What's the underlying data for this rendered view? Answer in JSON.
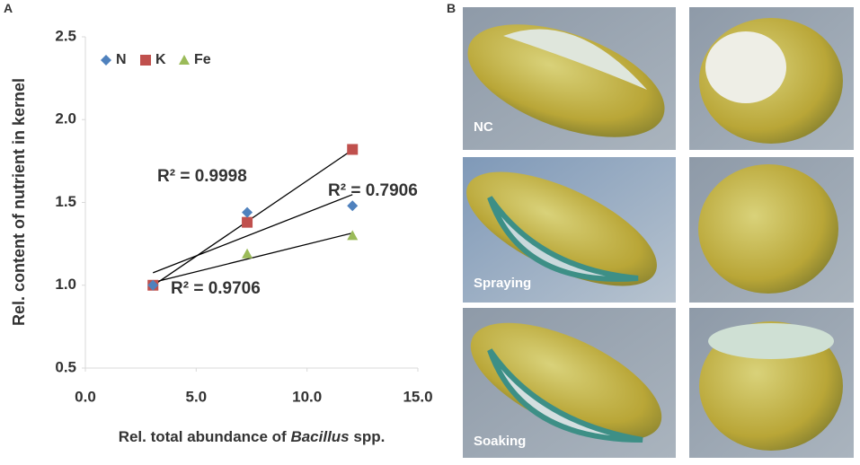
{
  "chart_data": {
    "type": "scatter",
    "y_label": "Rel. content of nutrient in kernel",
    "x_label": [
      "Rel. total abundance of ",
      "Bacillus",
      " spp."
    ],
    "x": [
      3.05,
      7.3,
      12.05
    ],
    "series": [
      {
        "name": "N",
        "color": "#4f81bd",
        "marker": "diamond",
        "values": [
          1.0,
          1.44,
          1.48
        ]
      },
      {
        "name": "K",
        "color": "#c0504d",
        "marker": "square",
        "values": [
          1.0,
          1.38,
          1.82
        ]
      },
      {
        "name": "Fe",
        "color": "#9bbb59",
        "marker": "triangle",
        "values": [
          1.0,
          1.19,
          1.3
        ]
      }
    ],
    "annotations": [
      "R² = 0.9998",
      "R² = 0.7906",
      "R² = 0.9706"
    ],
    "xlim": [
      0,
      15
    ],
    "xticks": [
      {
        "value": 0,
        "label": "0.0"
      },
      {
        "value": 5,
        "label": "5.0"
      },
      {
        "value": 10,
        "label": "10.0"
      },
      {
        "value": 15,
        "label": "15.0"
      }
    ],
    "ylim": [
      0.5,
      2.5
    ],
    "yticks": [
      0.5,
      {
        "value": 1,
        "label": "1.0"
      },
      1.5,
      {
        "value": 2,
        "label": "2.0"
      },
      2.5
    ],
    "trendlines": true
  },
  "panel_labels": [
    "A",
    "B"
  ],
  "photo_captions": [
    "NC",
    "Spraying",
    "Soaking"
  ]
}
